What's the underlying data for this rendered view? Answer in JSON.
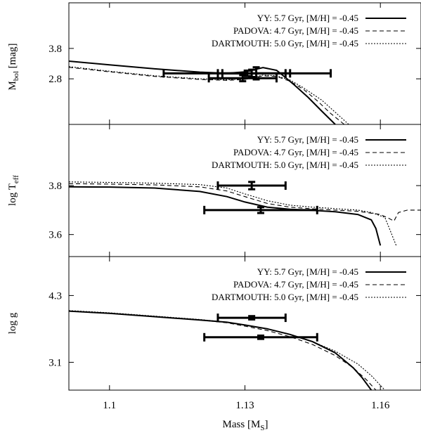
{
  "chart_data": {
    "type": "line",
    "xlabel_main": "Mass [M",
    "xlabel_sub": "S",
    "xlabel_close": "]",
    "xlim": [
      1.091,
      1.169
    ],
    "xticks": [
      1.1,
      1.13,
      1.16
    ],
    "xtick_labels": [
      "1.1",
      "1.13",
      "1.16"
    ],
    "legend": [
      {
        "label": "YY: 5.7 Gyr, [M/H] = -0.45",
        "style": "solid"
      },
      {
        "label": "PADOVA: 4.7 Gyr, [M/H] = -0.45",
        "style": "dashed"
      },
      {
        "label": "DARTMOUTH: 5.0 Gyr, [M/H] = -0.45",
        "style": "dotted"
      }
    ],
    "panels": [
      {
        "id": "mbol",
        "ylabel_main": "M",
        "ylabel_sub": "bol",
        "ylabel_rest": " [mag]",
        "ylim": [
          1.3,
          5.3
        ],
        "yticks": [
          3.8,
          2.8
        ],
        "ytick_labels": [
          "3.8",
          "2.8"
        ],
        "series": [
          {
            "name": "YY",
            "style": "solid",
            "x": [
              1.091,
              1.1,
              1.11,
              1.12,
              1.126,
              1.13,
              1.134,
              1.137,
              1.139,
              1.141,
              1.144,
              1.147,
              1.15
            ],
            "y": [
              3.38,
              3.26,
              3.13,
              3.02,
              2.98,
              3.03,
              3.17,
              3.08,
              2.84,
              2.59,
              2.19,
              1.74,
              1.3
            ]
          },
          {
            "name": "PADOVA",
            "style": "dashed",
            "x": [
              1.091,
              1.1,
              1.11,
              1.12,
              1.126,
              1.13,
              1.134,
              1.137,
              1.14,
              1.143,
              1.146,
              1.149,
              1.152
            ],
            "y": [
              3.18,
              3.03,
              2.88,
              2.78,
              2.75,
              2.78,
              2.9,
              2.88,
              2.72,
              2.45,
              2.08,
              1.66,
              1.3
            ]
          },
          {
            "name": "DARTMOUTH",
            "style": "dotted",
            "x": [
              1.091,
              1.1,
              1.11,
              1.12,
              1.126,
              1.13,
              1.134,
              1.137,
              1.14,
              1.143,
              1.147,
              1.15,
              1.153
            ],
            "y": [
              3.2,
              3.05,
              2.9,
              2.8,
              2.77,
              2.8,
              2.92,
              2.9,
              2.76,
              2.5,
              2.1,
              1.7,
              1.3
            ]
          }
        ],
        "errorbars": [
          {
            "x": 1.1305,
            "xerr": 0.0185,
            "y": 2.98,
            "yerr": 0.09
          },
          {
            "x": 1.1325,
            "xerr": 0.0075,
            "y": 2.98,
            "yerr": 0.2
          },
          {
            "x": 1.1295,
            "xerr": 0.0075,
            "y": 2.82,
            "yerr": 0.1
          },
          {
            "x": 1.1315,
            "xerr": 0.0075,
            "y": 2.98,
            "yerr": 0.12
          }
        ]
      },
      {
        "id": "logteff",
        "ylabel_main": "log T",
        "ylabel_sub": "eff",
        "ylabel_rest": "",
        "ylim": [
          3.51,
          4.05
        ],
        "yticks": [
          3.8,
          3.6
        ],
        "ytick_labels": [
          "3.8",
          "3.6"
        ],
        "series": [
          {
            "name": "YY",
            "style": "solid",
            "x": [
              1.091,
              1.1,
              1.11,
              1.12,
              1.126,
              1.13,
              1.135,
              1.14,
              1.145,
              1.15,
              1.155,
              1.158,
              1.159,
              1.1595,
              1.16
            ],
            "y": [
              3.795,
              3.794,
              3.79,
              3.776,
              3.755,
              3.733,
              3.712,
              3.703,
              3.699,
              3.693,
              3.682,
              3.66,
              3.625,
              3.59,
              3.555
            ]
          },
          {
            "name": "PADOVA",
            "style": "dashed",
            "x": [
              1.091,
              1.1,
              1.11,
              1.12,
              1.126,
              1.13,
              1.135,
              1.14,
              1.145,
              1.15,
              1.155,
              1.16,
              1.162,
              1.163,
              1.164,
              1.166,
              1.169
            ],
            "y": [
              3.808,
              3.806,
              3.803,
              3.795,
              3.778,
              3.755,
              3.727,
              3.712,
              3.705,
              3.7,
              3.695,
              3.682,
              3.665,
              3.655,
              3.69,
              3.7,
              3.7
            ]
          },
          {
            "name": "DARTMOUTH",
            "style": "dotted",
            "x": [
              1.091,
              1.1,
              1.11,
              1.12,
              1.126,
              1.13,
              1.135,
              1.14,
              1.145,
              1.15,
              1.155,
              1.158,
              1.161,
              1.162,
              1.1635
            ],
            "y": [
              3.815,
              3.813,
              3.81,
              3.804,
              3.79,
              3.766,
              3.738,
              3.72,
              3.712,
              3.706,
              3.7,
              3.69,
              3.67,
              3.625,
              3.555
            ]
          }
        ],
        "errorbars": [
          {
            "x": 1.1315,
            "xerr": 0.0075,
            "y": 3.8,
            "yerr": 0.015
          },
          {
            "x": 1.1335,
            "xerr": 0.0125,
            "y": 3.7,
            "yerr": 0.012
          }
        ]
      },
      {
        "id": "logg",
        "ylabel_main": "log g",
        "ylabel_sub": "",
        "ylabel_rest": "",
        "ylim": [
          2.6,
          5.0
        ],
        "yticks": [
          4.3,
          3.1
        ],
        "ytick_labels": [
          "4.3",
          "3.1"
        ],
        "series": [
          {
            "name": "YY",
            "style": "solid",
            "x": [
              1.091,
              1.1,
              1.11,
              1.12,
              1.126,
              1.13,
              1.135,
              1.14,
              1.145,
              1.15,
              1.154,
              1.156,
              1.158
            ],
            "y": [
              4.02,
              3.98,
              3.92,
              3.86,
              3.82,
              3.77,
              3.7,
              3.6,
              3.47,
              3.27,
              3.0,
              2.82,
              2.6
            ]
          },
          {
            "name": "PADOVA",
            "style": "dashed",
            "x": [
              1.091,
              1.1,
              1.11,
              1.12,
              1.126,
              1.13,
              1.135,
              1.14,
              1.145,
              1.15,
              1.154,
              1.157,
              1.159
            ],
            "y": [
              4.02,
              3.98,
              3.92,
              3.86,
              3.81,
              3.75,
              3.67,
              3.56,
              3.42,
              3.22,
              3.0,
              2.78,
              2.6
            ]
          },
          {
            "name": "DARTMOUTH",
            "style": "dotted",
            "x": [
              1.091,
              1.1,
              1.11,
              1.12,
              1.126,
              1.13,
              1.135,
              1.14,
              1.145,
              1.15,
              1.155,
              1.158,
              1.161
            ],
            "y": [
              4.03,
              3.99,
              3.93,
              3.87,
              3.82,
              3.77,
              3.7,
              3.6,
              3.47,
              3.3,
              3.07,
              2.86,
              2.6
            ]
          }
        ],
        "errorbars": [
          {
            "x": 1.1315,
            "xerr": 0.0075,
            "y": 3.9,
            "yerr": 0.03
          },
          {
            "x": 1.1335,
            "xerr": 0.0125,
            "y": 3.55,
            "yerr": 0.03
          }
        ]
      }
    ]
  }
}
